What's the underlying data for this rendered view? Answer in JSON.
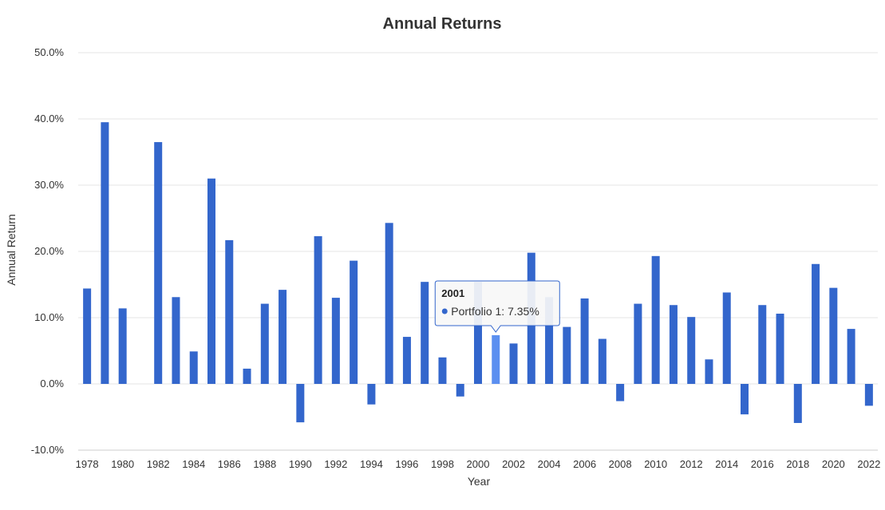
{
  "chart_data": {
    "type": "bar",
    "title": "Annual Returns",
    "xlabel": "Year",
    "ylabel": "Annual Return",
    "ylim": [
      -10,
      50
    ],
    "yticks": [
      "-10.0%",
      "0.0%",
      "10.0%",
      "20.0%",
      "30.0%",
      "40.0%",
      "50.0%"
    ],
    "ytick_values": [
      -10,
      0,
      10,
      20,
      30,
      40,
      50
    ],
    "xtick_labels": [
      "1978",
      "1980",
      "1982",
      "1984",
      "1986",
      "1988",
      "1990",
      "1992",
      "1994",
      "1996",
      "1998",
      "2000",
      "2002",
      "2004",
      "2006",
      "2008",
      "2010",
      "2012",
      "2014",
      "2016",
      "2018",
      "2020",
      "2022"
    ],
    "grid": true,
    "legend": "none",
    "bar_color": "#3366cc",
    "highlight_color": "#5b8ff0",
    "categories": [
      "1978",
      "1979",
      "1980",
      "1981",
      "1982",
      "1983",
      "1984",
      "1985",
      "1986",
      "1987",
      "1988",
      "1989",
      "1990",
      "1991",
      "1992",
      "1993",
      "1994",
      "1995",
      "1996",
      "1997",
      "1998",
      "1999",
      "2000",
      "2001",
      "2002",
      "2003",
      "2004",
      "2005",
      "2006",
      "2007",
      "2008",
      "2009",
      "2010",
      "2011",
      "2012",
      "2013",
      "2014",
      "2015",
      "2016",
      "2017",
      "2018",
      "2019",
      "2020",
      "2021",
      "2022"
    ],
    "series": [
      {
        "values": [
          14.4,
          39.5,
          11.4,
          0.0,
          36.5,
          13.1,
          4.9,
          31.0,
          21.7,
          2.3,
          12.1,
          14.2,
          -5.8,
          22.3,
          13.0,
          18.6,
          -3.1,
          24.3,
          7.1,
          15.4,
          4.0,
          -1.9,
          15.4,
          7.35,
          6.1,
          19.8,
          13.1,
          8.6,
          12.9,
          6.8,
          -2.6,
          12.1,
          19.3,
          11.9,
          10.1,
          3.7,
          13.8,
          -4.6,
          11.9,
          10.6,
          -5.9,
          18.1,
          14.5,
          8.3,
          -3.3
        ]
      }
    ],
    "highlighted_index": 23,
    "tooltip": {
      "title": "2001",
      "series_label": "Portfolio 1: 7.35%"
    }
  }
}
